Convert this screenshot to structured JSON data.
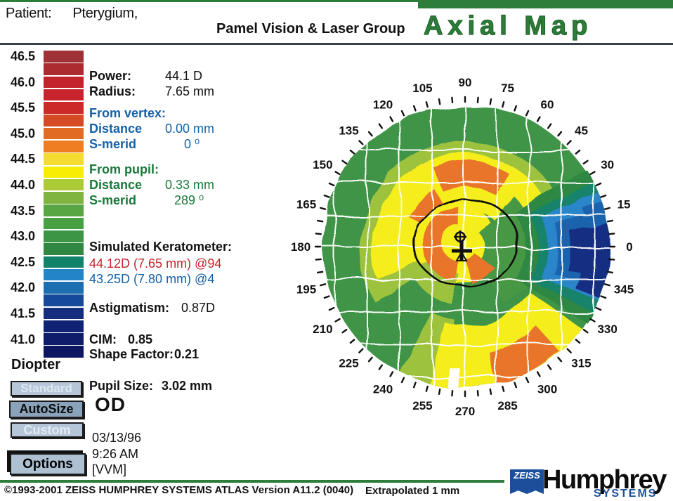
{
  "header": {
    "patient_label": "Patient:",
    "patient_value": "Pterygium,",
    "clinic": "Pamel Vision & Laser Group",
    "title": "Axial Map"
  },
  "scale": {
    "unit_label": "Diopter",
    "labels": [
      "46.5",
      "46.0",
      "45.5",
      "45.0",
      "44.5",
      "44.0",
      "43.5",
      "43.0",
      "42.5",
      "42.0",
      "41.5",
      "41.0"
    ],
    "block_colors": [
      "#A03136",
      "#AC2B31",
      "#C3242C",
      "#C8242C",
      "#CB2A28",
      "#D54B26",
      "#E26B24",
      "#EF7D21",
      "#F4DC31",
      "#F8EE05",
      "#ACCB37",
      "#7FB441",
      "#58A543",
      "#47A041",
      "#3B9544",
      "#2F8742",
      "#12836B",
      "#2485C6",
      "#1B6FB0",
      "#154999",
      "#152C7F",
      "#112173",
      "#0F1B6B",
      "#0D1663"
    ]
  },
  "stats": {
    "power_label": "Power:",
    "power_value": "44.1 D",
    "radius_label": "Radius:",
    "radius_value": "7.65 mm",
    "from_vertex_label": "From vertex:",
    "vertex_distance_label": "Distance",
    "vertex_distance_value": "0.00 mm",
    "vertex_smerid_label": "S-merid",
    "vertex_smerid_value": "0 ⁰",
    "from_pupil_label": "From pupil:",
    "pupil_distance_label": "Distance",
    "pupil_distance_value": "0.33 mm",
    "pupil_smerid_label": "S-merid",
    "pupil_smerid_value": "289 ⁰",
    "simk_label": "Simulated Keratometer:",
    "simk_line1": "44.12D (7.65 mm) @94",
    "simk_line2": "43.25D (7.80 mm) @4",
    "astig_label": "Astigmatism:",
    "astig_value": "0.87D",
    "cim_label": "CIM:",
    "cim_value": "0.85",
    "shape_label": "Shape Factor:",
    "shape_value": "0.21",
    "pupil_size_label": "Pupil Size:",
    "pupil_size_value": "3.02 mm",
    "eye": "OD",
    "date": "03/13/96",
    "time": "9:26 AM",
    "operator": "[VVM]"
  },
  "buttons": {
    "standard": "Standard",
    "autosize": "AutoSize",
    "custom": "Custom",
    "options": "Options"
  },
  "map": {
    "angle_labels": [
      0,
      15,
      30,
      45,
      60,
      75,
      90,
      105,
      120,
      135,
      150,
      165,
      180,
      195,
      210,
      225,
      240,
      255,
      270,
      285,
      300,
      315,
      330,
      345
    ],
    "note": "Extrapolated 1 mm"
  },
  "footer": {
    "copyright": "©1993-2001 ZEISS HUMPHREY SYSTEMS ATLAS  Version A11.2 (0040)",
    "zeiss": "ZEISS",
    "humphrey": "Humphrey",
    "systems": "SYSTEMS"
  }
}
